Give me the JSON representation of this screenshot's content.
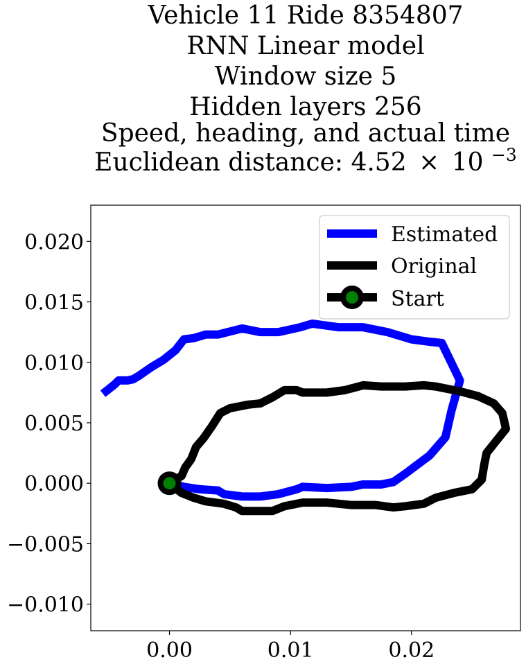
{
  "chart_data": {
    "type": "line",
    "title_lines": [
      "Vehicle 11 Ride 8354807",
      "RNN Linear model",
      "Window size 5",
      "Hidden layers 256",
      "Speed, heading, and actual time"
    ],
    "title_distance": {
      "prefix": "Euclidean distance: 4.52",
      "times": "×",
      "base": "10",
      "exponent": "−3"
    },
    "xlabel": "",
    "ylabel": "",
    "xlim": [
      -0.0065,
      0.029
    ],
    "ylim": [
      -0.0122,
      0.023
    ],
    "grid": false,
    "legend_position": "top-right",
    "x_ticks": [
      {
        "value": 0.0,
        "label": "0.00"
      },
      {
        "value": 0.01,
        "label": "0.01"
      },
      {
        "value": 0.02,
        "label": "0.02"
      }
    ],
    "y_ticks": [
      {
        "value": 0.02,
        "label": "0.020"
      },
      {
        "value": 0.015,
        "label": "0.015"
      },
      {
        "value": 0.01,
        "label": "0.010"
      },
      {
        "value": 0.005,
        "label": "0.005"
      },
      {
        "value": 0.0,
        "label": "0.000"
      },
      {
        "value": -0.005,
        "label": "−0.005"
      },
      {
        "value": -0.01,
        "label": "−0.010"
      }
    ],
    "series": [
      {
        "name": "Estimated",
        "color": "#0000ff",
        "points": [
          [
            0.0,
            0.0
          ],
          [
            0.0012,
            -0.0003
          ],
          [
            0.0025,
            -0.0005
          ],
          [
            0.004,
            -0.0006
          ],
          [
            0.0045,
            -0.0009
          ],
          [
            0.006,
            -0.0011
          ],
          [
            0.0075,
            -0.0011
          ],
          [
            0.009,
            -0.0009
          ],
          [
            0.0105,
            -0.0005
          ],
          [
            0.011,
            -0.0003
          ],
          [
            0.013,
            -0.0004
          ],
          [
            0.015,
            -0.0003
          ],
          [
            0.016,
            -0.0001
          ],
          [
            0.0175,
            -0.0001
          ],
          [
            0.0185,
            0.0001
          ],
          [
            0.0195,
            0.0008
          ],
          [
            0.0215,
            0.0023
          ],
          [
            0.0228,
            0.0038
          ],
          [
            0.0233,
            0.006
          ],
          [
            0.024,
            0.0085
          ],
          [
            0.0225,
            0.0116
          ],
          [
            0.0215,
            0.0117
          ],
          [
            0.02,
            0.0119
          ],
          [
            0.018,
            0.0125
          ],
          [
            0.016,
            0.0129
          ],
          [
            0.014,
            0.0129
          ],
          [
            0.0118,
            0.0132
          ],
          [
            0.0108,
            0.0129
          ],
          [
            0.009,
            0.0125
          ],
          [
            0.0075,
            0.0125
          ],
          [
            0.006,
            0.0128
          ],
          [
            0.0052,
            0.0126
          ],
          [
            0.004,
            0.0123
          ],
          [
            0.003,
            0.0123
          ],
          [
            0.002,
            0.012
          ],
          [
            0.0012,
            0.0119
          ],
          [
            0.0005,
            0.011
          ],
          [
            -0.0005,
            0.0102
          ],
          [
            -0.0015,
            0.0096
          ],
          [
            -0.0025,
            0.0089
          ],
          [
            -0.003,
            0.0086
          ],
          [
            -0.0035,
            0.0085
          ],
          [
            -0.0042,
            0.0085
          ],
          [
            -0.0045,
            0.0082
          ],
          [
            -0.005,
            0.0078
          ],
          [
            -0.0055,
            0.0074
          ]
        ]
      },
      {
        "name": "Original",
        "color": "#000000",
        "points": [
          [
            0.0,
            0.0
          ],
          [
            0.0005,
            0.0003
          ],
          [
            0.001,
            0.0006
          ],
          [
            0.0013,
            0.0013
          ],
          [
            0.0018,
            0.002
          ],
          [
            0.0022,
            0.003
          ],
          [
            0.0028,
            0.0037
          ],
          [
            0.0035,
            0.0047
          ],
          [
            0.0042,
            0.0058
          ],
          [
            0.005,
            0.0062
          ],
          [
            0.0065,
            0.0065
          ],
          [
            0.0075,
            0.0066
          ],
          [
            0.0085,
            0.0071
          ],
          [
            0.0095,
            0.0077
          ],
          [
            0.0105,
            0.0077
          ],
          [
            0.011,
            0.0075
          ],
          [
            0.013,
            0.0075
          ],
          [
            0.0145,
            0.0077
          ],
          [
            0.016,
            0.0081
          ],
          [
            0.0175,
            0.008
          ],
          [
            0.0195,
            0.008
          ],
          [
            0.021,
            0.0081
          ],
          [
            0.022,
            0.008
          ],
          [
            0.024,
            0.0076
          ],
          [
            0.0255,
            0.0072
          ],
          [
            0.0268,
            0.0066
          ],
          [
            0.0275,
            0.0058
          ],
          [
            0.0278,
            0.0045
          ],
          [
            0.027,
            0.0035
          ],
          [
            0.0262,
            0.0025
          ],
          [
            0.026,
            0.0015
          ],
          [
            0.0258,
            0.0003
          ],
          [
            0.025,
            -0.0005
          ],
          [
            0.0235,
            -0.0008
          ],
          [
            0.022,
            -0.0012
          ],
          [
            0.021,
            -0.0017
          ],
          [
            0.0195,
            -0.0019
          ],
          [
            0.0185,
            -0.002
          ],
          [
            0.017,
            -0.0018
          ],
          [
            0.015,
            -0.0018
          ],
          [
            0.013,
            -0.0016
          ],
          [
            0.011,
            -0.0016
          ],
          [
            0.0095,
            -0.0019
          ],
          [
            0.0085,
            -0.0023
          ],
          [
            0.007,
            -0.0023
          ],
          [
            0.006,
            -0.0023
          ],
          [
            0.0055,
            -0.002
          ],
          [
            0.0045,
            -0.0017
          ],
          [
            0.003,
            -0.0015
          ],
          [
            0.002,
            -0.0012
          ],
          [
            0.001,
            -0.0008
          ],
          [
            0.0,
            0.0
          ]
        ]
      }
    ],
    "start_marker": {
      "name": "Start",
      "x": 0.0,
      "y": 0.0,
      "edge_color": "#000000",
      "face_color": "#008000"
    }
  }
}
